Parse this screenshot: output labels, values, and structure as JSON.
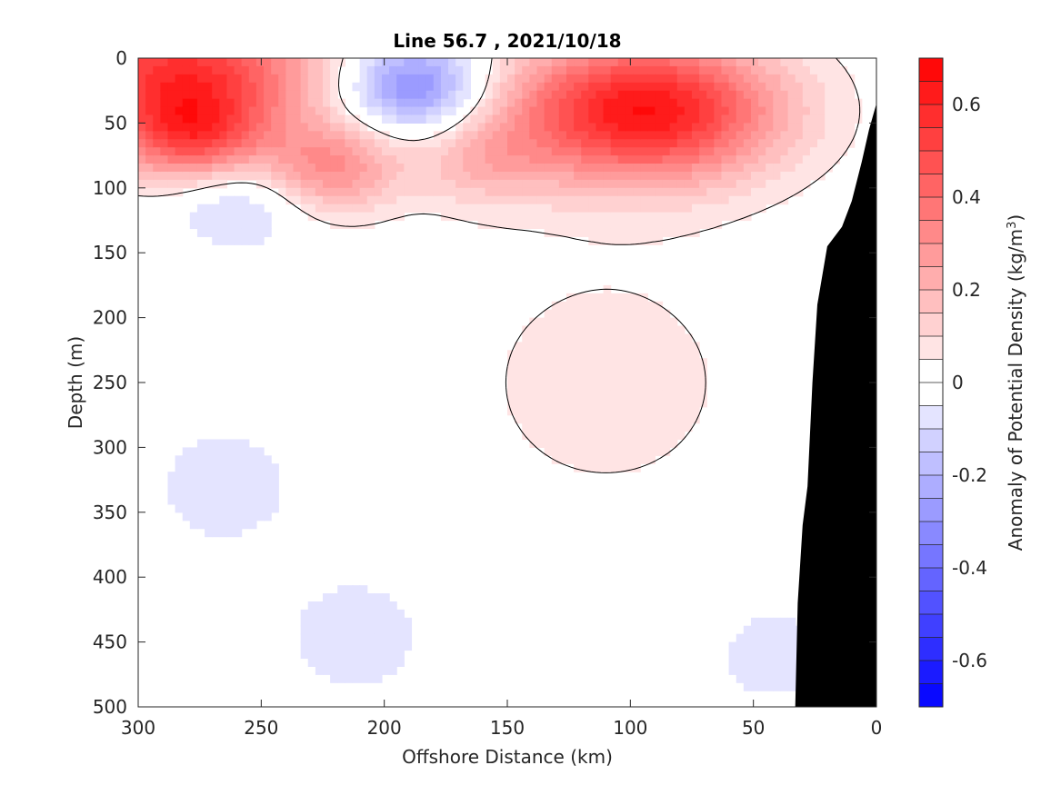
{
  "chart_data": {
    "type": "heatmap",
    "subtype": "filled-contour section",
    "title": "Line 56.7 , 2021/10/18",
    "xlabel": "Offshore Distance (km)",
    "ylabel": "Depth (m)",
    "colorbar_label": "Anomaly of Potential Density (kg/m3)",
    "colorbar_label_parts": {
      "main": "Anomaly of Potential Density (kg/m",
      "sup": "3",
      "end": ")"
    },
    "x_reversed": true,
    "y_reversed": true,
    "xlim": [
      300,
      0
    ],
    "ylim": [
      0,
      500
    ],
    "clim": [
      -0.7,
      0.7
    ],
    "contour_interval": 0.05,
    "x_ticks": [
      300,
      250,
      200,
      150,
      100,
      50,
      0
    ],
    "y_ticks": [
      0,
      50,
      100,
      150,
      200,
      250,
      300,
      350,
      400,
      450,
      500
    ],
    "colorbar_ticks": [
      0.6,
      0.4,
      0.2,
      0,
      -0.2,
      -0.4,
      -0.6
    ],
    "colors": {
      "positive": "#ff0000",
      "negative": "#0000ff",
      "zero": "#ffffff",
      "land": "#000000",
      "zero_contour": "#000000"
    },
    "land_mask_note": "shelf/slope shown in black at nearshore depths",
    "features": [
      {
        "sign": "positive",
        "x_center_km": 282,
        "depth_center_m": 12,
        "peak": 0.55
      },
      {
        "sign": "positive",
        "x_center_km": 278,
        "depth_center_m": 62,
        "peak": 0.35
      },
      {
        "sign": "negative",
        "x_center_km": 188,
        "depth_center_m": 22,
        "peak": -0.35
      },
      {
        "sign": "positive",
        "x_center_km": 222,
        "depth_center_m": 85,
        "peak": 0.3
      },
      {
        "sign": "negative",
        "x_center_km": 258,
        "depth_center_m": 110,
        "peak": -0.15
      },
      {
        "sign": "positive",
        "x_center_km": 95,
        "depth_center_m": 40,
        "peak": 0.65
      },
      {
        "sign": "positive",
        "x_center_km": 160,
        "depth_center_m": 80,
        "peak": 0.15
      },
      {
        "sign": "negative",
        "x_center_km": 212,
        "depth_center_m": 445,
        "peak": -0.1
      },
      {
        "sign": "negative",
        "x_center_km": 42,
        "depth_center_m": 460,
        "peak": -0.08
      },
      {
        "sign": "negative",
        "x_center_km": 265,
        "depth_center_m": 330,
        "peak": -0.1
      }
    ]
  }
}
